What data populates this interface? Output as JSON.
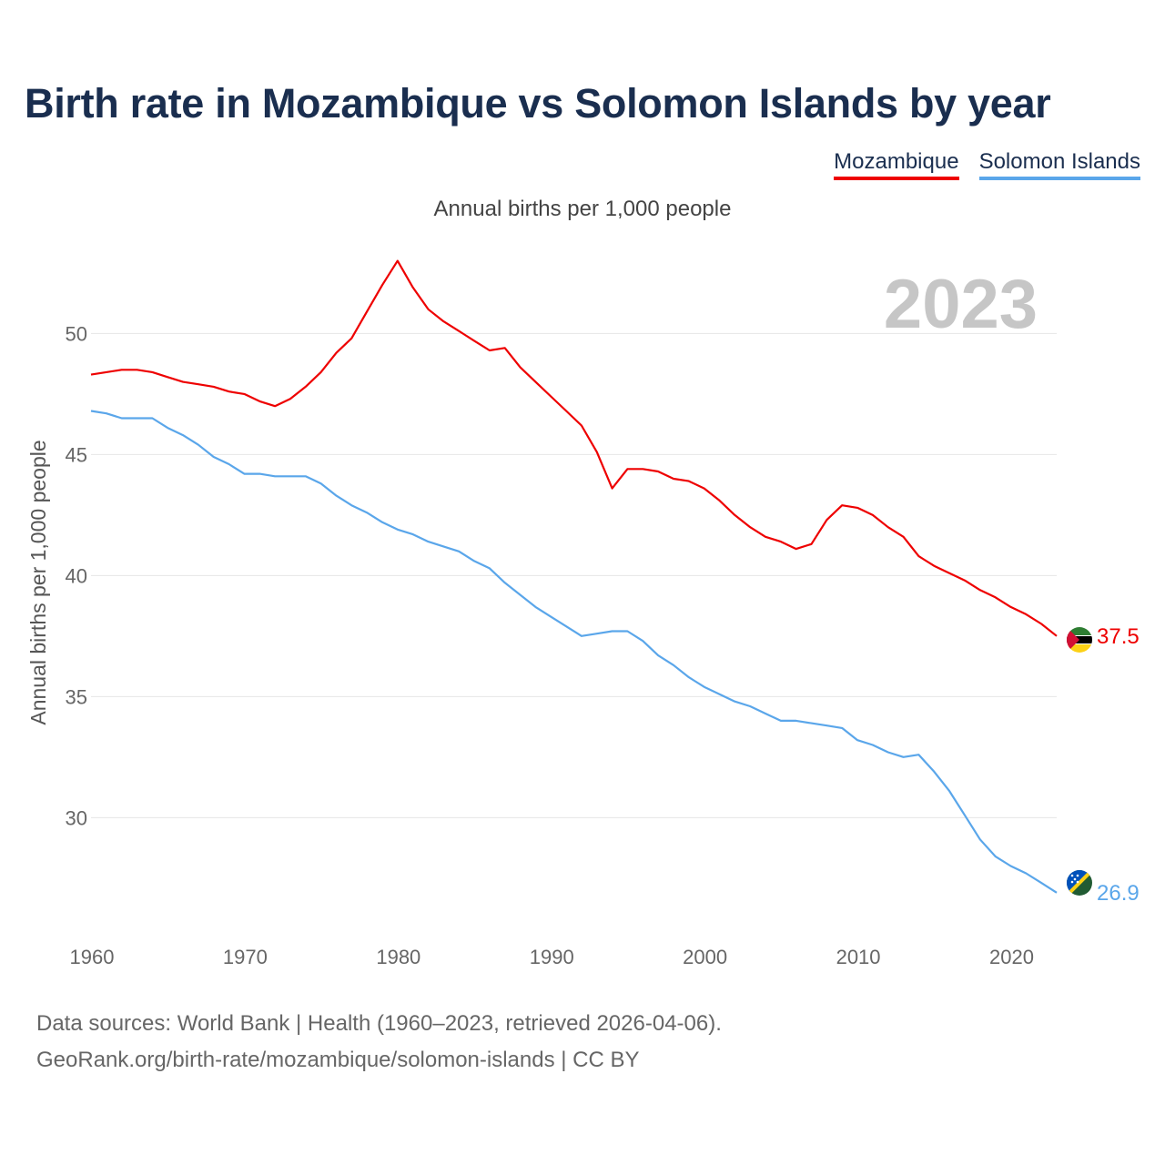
{
  "title": "Birth rate in Mozambique vs Solomon Islands by year",
  "subtitle": "Annual births per 1,000 people",
  "legend": [
    {
      "label": "Mozambique",
      "color": "#ee0000"
    },
    {
      "label": "Solomon Islands",
      "color": "#5aa6ea"
    }
  ],
  "footer": {
    "line1": "Data sources: World Bank | Health (1960–2023, retrieved 2026-04-06).",
    "line2": "GeoRank.org/birth-rate/mozambique/solomon-islands | CC BY"
  },
  "chart_data": {
    "type": "line",
    "title": "Birth rate in Mozambique vs Solomon Islands by year",
    "ylabel": "Annual births per 1,000 people",
    "xlabel": "",
    "year_label": "2023",
    "xlim": [
      1960,
      2023
    ],
    "ylim": [
      25.5,
      54
    ],
    "x_ticks": [
      1960,
      1970,
      1980,
      1990,
      2000,
      2010,
      2020
    ],
    "y_ticks": [
      30,
      35,
      40,
      45,
      50
    ],
    "grid": true,
    "x": [
      1960,
      1961,
      1962,
      1963,
      1964,
      1965,
      1966,
      1967,
      1968,
      1969,
      1970,
      1971,
      1972,
      1973,
      1974,
      1975,
      1976,
      1977,
      1978,
      1979,
      1980,
      1981,
      1982,
      1983,
      1984,
      1985,
      1986,
      1987,
      1988,
      1989,
      1990,
      1991,
      1992,
      1993,
      1994,
      1995,
      1996,
      1997,
      1998,
      1999,
      2000,
      2001,
      2002,
      2003,
      2004,
      2005,
      2006,
      2007,
      2008,
      2009,
      2010,
      2011,
      2012,
      2013,
      2014,
      2015,
      2016,
      2017,
      2018,
      2019,
      2020,
      2021,
      2022,
      2023
    ],
    "series": [
      {
        "name": "Mozambique",
        "color": "#ee0000",
        "end_label": "37.5",
        "values": [
          48.3,
          48.4,
          48.5,
          48.5,
          48.4,
          48.2,
          48.0,
          47.9,
          47.8,
          47.6,
          47.5,
          47.2,
          47.0,
          47.3,
          47.8,
          48.4,
          49.2,
          49.8,
          50.9,
          52.0,
          53.0,
          51.9,
          51.0,
          50.5,
          50.1,
          49.7,
          49.3,
          49.4,
          48.6,
          48.0,
          47.4,
          46.8,
          46.2,
          45.1,
          43.6,
          44.4,
          44.4,
          44.3,
          44.0,
          43.9,
          43.6,
          43.1,
          42.5,
          42.0,
          41.6,
          41.4,
          41.1,
          41.3,
          42.3,
          42.9,
          42.8,
          42.5,
          42.0,
          41.6,
          40.8,
          40.4,
          40.1,
          39.8,
          39.4,
          39.1,
          38.7,
          38.4,
          38.0,
          37.5
        ]
      },
      {
        "name": "Solomon Islands",
        "color": "#5aa6ea",
        "end_label": "26.9",
        "values": [
          46.8,
          46.7,
          46.5,
          46.5,
          46.5,
          46.1,
          45.8,
          45.4,
          44.9,
          44.6,
          44.2,
          44.2,
          44.1,
          44.1,
          44.1,
          43.8,
          43.3,
          42.9,
          42.6,
          42.2,
          41.9,
          41.7,
          41.4,
          41.2,
          41.0,
          40.6,
          40.3,
          39.7,
          39.2,
          38.7,
          38.3,
          37.9,
          37.5,
          37.6,
          37.7,
          37.7,
          37.3,
          36.7,
          36.3,
          35.8,
          35.4,
          35.1,
          34.8,
          34.6,
          34.3,
          34.0,
          34.0,
          33.9,
          33.8,
          33.7,
          33.2,
          33.0,
          32.7,
          32.5,
          32.6,
          31.9,
          31.1,
          30.1,
          29.1,
          28.4,
          28.0,
          27.7,
          27.3,
          26.9
        ]
      }
    ]
  }
}
